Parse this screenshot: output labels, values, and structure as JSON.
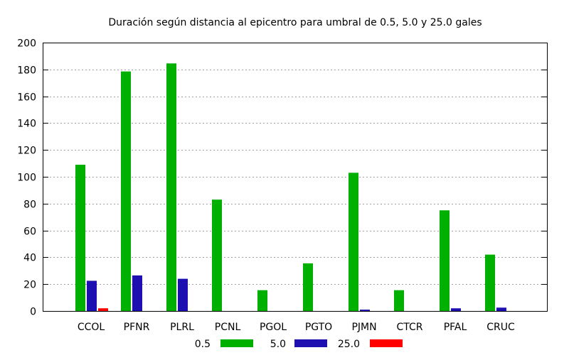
{
  "chart_data": {
    "type": "bar",
    "title": "Duración según distancia al epicentro para umbral de 0.5, 5.0 y 25.0 gales",
    "xlabel": "",
    "ylabel": "",
    "ylim": [
      0,
      200
    ],
    "yticks": [
      0,
      20,
      40,
      60,
      80,
      100,
      120,
      140,
      160,
      180,
      200
    ],
    "grid": true,
    "legend_position": "bottom",
    "categories": [
      "CCOL",
      "PFNR",
      "PLRL",
      "PCNL",
      "PGOL",
      "PGTO",
      "PJMN",
      "CTCR",
      "PFAL",
      "CRUC"
    ],
    "series": [
      {
        "name": "0.5",
        "color": "#00b000",
        "values": [
          109,
          178.5,
          184.5,
          83,
          15.5,
          35.5,
          103,
          15.5,
          75,
          42
        ]
      },
      {
        "name": "5.0",
        "color": "#1e10b0",
        "values": [
          22.5,
          26.5,
          24,
          0,
          0,
          0,
          1,
          0,
          2,
          2.5
        ]
      },
      {
        "name": "25.0",
        "color": "#ff0000",
        "values": [
          2,
          0,
          0,
          0,
          0,
          0,
          0,
          0,
          0,
          0
        ]
      }
    ]
  }
}
